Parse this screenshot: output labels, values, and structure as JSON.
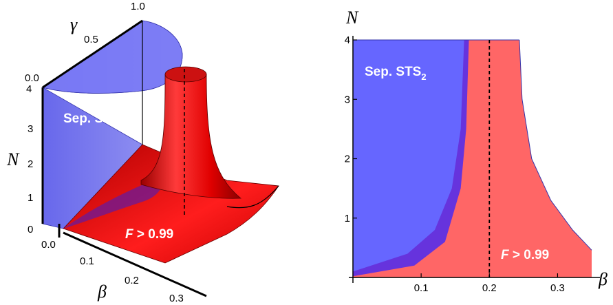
{
  "chart_data": [
    {
      "type": "area",
      "title": "",
      "view": "3d-surface",
      "axes": {
        "x": {
          "label": "β",
          "ticks": [
            "0.0",
            "0.1",
            "0.2",
            "0.3"
          ]
        },
        "y": {
          "label": "γ",
          "ticks": [
            "0.0",
            "0.5",
            "1.0"
          ]
        },
        "z": {
          "label": "N",
          "ticks": [
            "0",
            "1",
            "2",
            "3",
            "4"
          ]
        }
      },
      "series": [
        {
          "name": "Sep. STS₂",
          "label_main": "Sep. STS",
          "label_sub": "2",
          "color": "#5555ff"
        },
        {
          "name": "F > 0.99",
          "label_f": "F",
          "label_rest": " > 0.99",
          "color": "#ee1111"
        }
      ],
      "reference_line": {
        "x": 0.2,
        "style": "dashed"
      }
    },
    {
      "type": "area",
      "title": "",
      "xlabel": "β",
      "ylabel": "N",
      "xlim": [
        0,
        0.35
      ],
      "ylim": [
        0,
        4
      ],
      "xticks": [
        0.1,
        0.2,
        0.3
      ],
      "xtick_labels": [
        "0.1",
        "0.2",
        "0.3"
      ],
      "yticks": [
        1,
        2,
        3,
        4
      ],
      "ytick_labels": [
        "1",
        "2",
        "3",
        "4"
      ],
      "regions": [
        {
          "name": "Sep. STS₂",
          "label_main": "Sep. STS",
          "label_sub": "2",
          "color": "#6666ff",
          "boundary": {
            "x": [
              0,
              0.08,
              0.12,
              0.145,
              0.158,
              0.163
            ],
            "y": [
              0.1,
              0.4,
              0.8,
              1.5,
              2.5,
              4
            ]
          }
        },
        {
          "name": "overlap",
          "color": "#6633dd",
          "boundary": {
            "x": [
              0,
              0.09,
              0.135,
              0.158,
              0.166,
              0.17
            ],
            "y": [
              0.02,
              0.2,
              0.6,
              1.5,
              2.5,
              4
            ]
          }
        },
        {
          "name": "F > 0.99",
          "label_f": "F",
          "label_rest": " > 0.99",
          "color": "#ff6666",
          "boundary": {
            "x": [
              0.244,
              0.248,
              0.262,
              0.29,
              0.322,
              0.35
            ],
            "y": [
              4,
              3,
              2,
              1.3,
              0.8,
              0.46
            ]
          }
        }
      ],
      "reference_line": {
        "x": 0.2,
        "style": "dashed"
      }
    }
  ]
}
